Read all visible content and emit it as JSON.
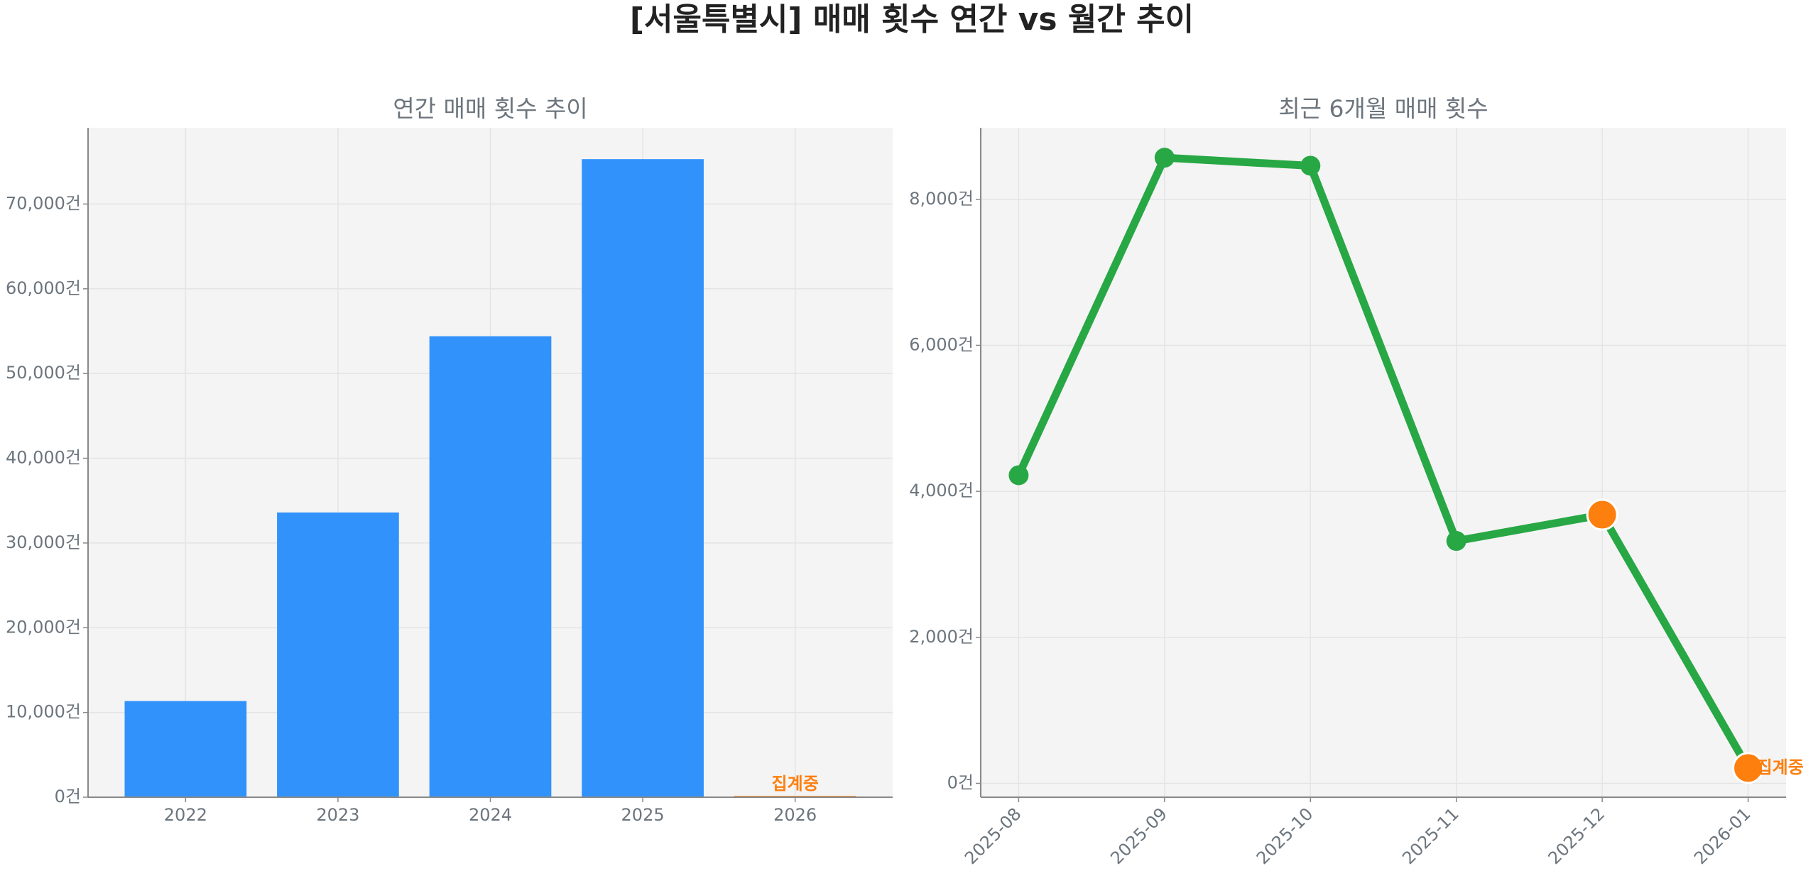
{
  "title": "[서울특별시] 매매 횟수 연간 vs 월간 추이",
  "chart_data": [
    {
      "type": "bar",
      "title": "연간 매매 횟수 추이",
      "categories": [
        "2022",
        "2023",
        "2024",
        "2025",
        "2026"
      ],
      "values": [
        11350,
        33600,
        54400,
        75300,
        150
      ],
      "colors": [
        "#3192fb",
        "#3192fb",
        "#3192fb",
        "#3192fb",
        "#fd7f0e"
      ],
      "annotation": "집계중",
      "ylim": [
        0,
        79000
      ],
      "yticks": [
        {
          "value": 0,
          "label": "0건"
        },
        {
          "value": 10000,
          "label": "10,000건"
        },
        {
          "value": 20000,
          "label": "20,000건"
        },
        {
          "value": 30000,
          "label": "30,000건"
        },
        {
          "value": 40000,
          "label": "40,000건"
        },
        {
          "value": 50000,
          "label": "50,000건"
        },
        {
          "value": 60000,
          "label": "60,000건"
        },
        {
          "value": 70000,
          "label": "70,000건"
        }
      ],
      "grid": true
    },
    {
      "type": "line",
      "title": "최근 6개월 매매 횟수",
      "categories": [
        "2025-08",
        "2025-09",
        "2025-10",
        "2025-11",
        "2025-12",
        "2026-01"
      ],
      "values": [
        4220,
        8570,
        8460,
        3320,
        3680,
        210
      ],
      "color": "#28a745",
      "point_colors": [
        "#28a745",
        "#28a745",
        "#28a745",
        "#28a745",
        "#fd7f0e",
        "#fd7f0e"
      ],
      "annotation": "집계중",
      "ylim": [
        -190,
        8980
      ],
      "yticks": [
        {
          "value": 0,
          "label": "0건"
        },
        {
          "value": 2000,
          "label": "2,000건"
        },
        {
          "value": 4000,
          "label": "4,000건"
        },
        {
          "value": 6000,
          "label": "6,000건"
        },
        {
          "value": 8000,
          "label": "8,000건"
        }
      ],
      "grid": true
    }
  ]
}
